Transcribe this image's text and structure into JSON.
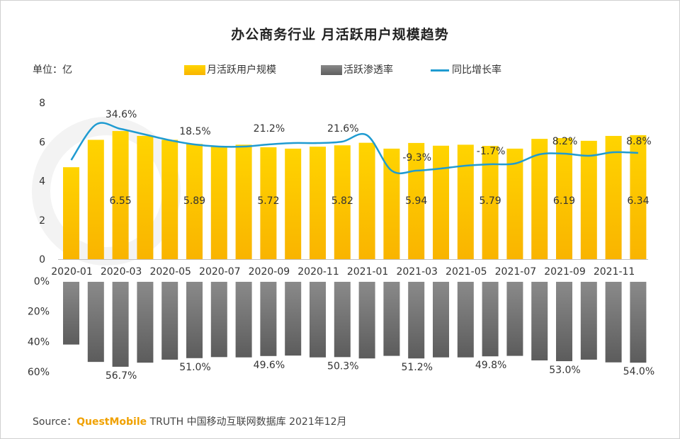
{
  "title": "办公商务行业 月活跃用户规模趋势",
  "unit_label": "单位：亿",
  "legend": {
    "bar_label": "月活跃用户规模",
    "rate_label": "活跃渗透率",
    "line_label": "同比增长率"
  },
  "source": {
    "prefix": "Source：",
    "brand": "QuestMobile",
    "rest": " TRUTH 中国移动互联网数据库 2021年12月"
  },
  "colors": {
    "bar_top": "#ffd400",
    "bar_bottom": "#f9b400",
    "gray_top": "#8a8a8a",
    "gray_bottom": "#5c5c5c",
    "line": "#1f9bd1",
    "watermark": "#f3f3f3"
  },
  "chart_data": {
    "type": "bar",
    "title": "办公商务行业 月活跃用户规模趋势",
    "categories": [
      "2020-01",
      "2020-02",
      "2020-03",
      "2020-04",
      "2020-05",
      "2020-06",
      "2020-07",
      "2020-08",
      "2020-09",
      "2020-10",
      "2020-11",
      "2020-12",
      "2021-01",
      "2021-02",
      "2021-03",
      "2021-04",
      "2021-05",
      "2021-06",
      "2021-07",
      "2021-08",
      "2021-09",
      "2021-10",
      "2021-11",
      "2021-12"
    ],
    "tick_labels": [
      "2020-01",
      "2020-03",
      "2020-05",
      "2020-07",
      "2020-09",
      "2020-11",
      "2021-01",
      "2021-03",
      "2021-05",
      "2021-07",
      "2021-09",
      "2021-11"
    ],
    "mau": {
      "name": "月活跃用户规模",
      "values": [
        4.7,
        6.1,
        6.55,
        6.3,
        6.1,
        5.89,
        5.75,
        5.85,
        5.72,
        5.65,
        5.75,
        5.82,
        5.95,
        5.65,
        5.94,
        5.8,
        5.85,
        5.79,
        5.65,
        6.15,
        6.19,
        6.05,
        6.3,
        6.34
      ],
      "labels": {
        "2": "6.55",
        "5": "5.89",
        "8": "5.72",
        "11": "5.82",
        "14": "5.94",
        "17": "5.79",
        "20": "6.19",
        "23": "6.34"
      },
      "ylim": [
        0,
        8
      ],
      "yticks": [
        "0",
        "2",
        "4",
        "6",
        "8"
      ]
    },
    "penetration": {
      "name": "活跃渗透率",
      "values": [
        42,
        53.5,
        56.7,
        54,
        52,
        51.0,
        50.3,
        50.5,
        49.6,
        49.3,
        50.5,
        50.3,
        51.2,
        49.5,
        51.2,
        50.5,
        50.5,
        49.8,
        49.5,
        52.5,
        53.0,
        52,
        53.8,
        54.0
      ],
      "labels": {
        "2": "56.7%",
        "5": "51.0%",
        "8": "49.6%",
        "11": "50.3%",
        "14": "51.2%",
        "17": "49.8%",
        "20": "53.0%",
        "23": "54.0%"
      },
      "ylim": [
        0,
        60
      ],
      "yticks": [
        "0%",
        "20%",
        "40%",
        "60%"
      ]
    },
    "yoy_growth": {
      "name": "同比增长率",
      "labels": {
        "2": "34.6%",
        "5": "18.5%",
        "8": "21.2%",
        "11": "21.6%",
        "14": "-9.3%",
        "17": "-1.7%",
        "20": "8.2%",
        "23": "8.8%"
      }
    }
  }
}
